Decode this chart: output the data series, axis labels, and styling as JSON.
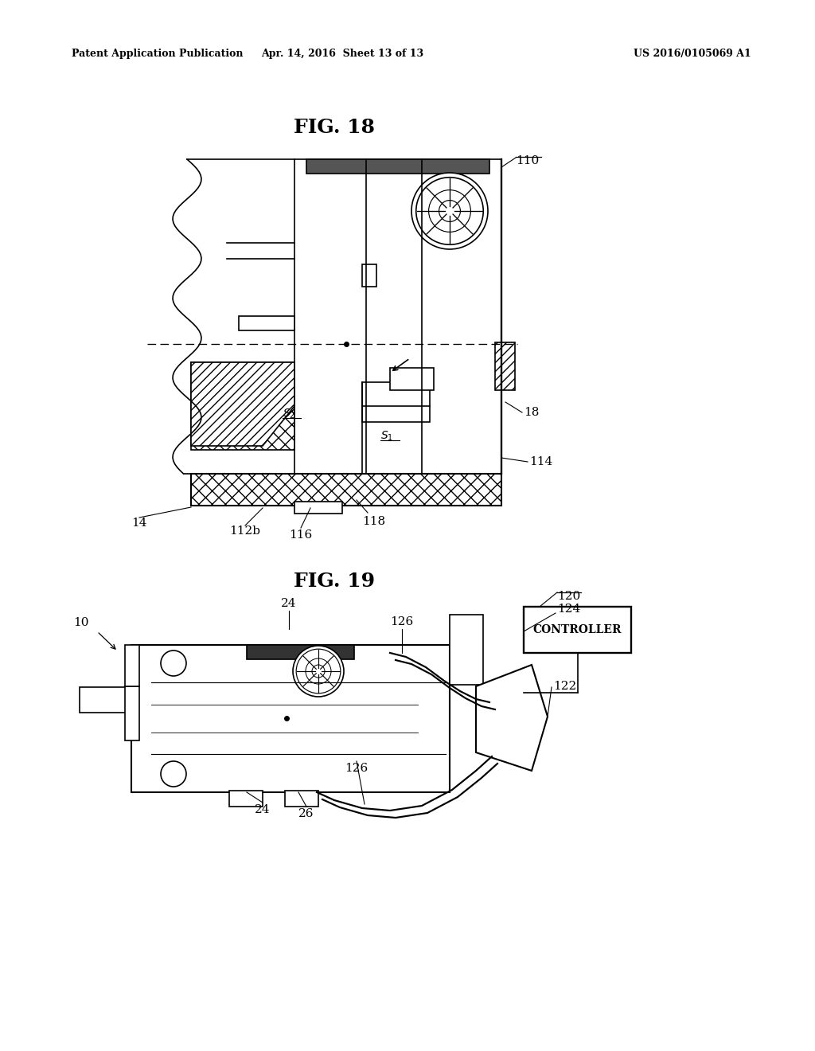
{
  "header_left": "Patent Application Publication",
  "header_mid": "Apr. 14, 2016  Sheet 13 of 13",
  "header_right": "US 2016/0105069 A1",
  "fig18_title": "FIG. 18",
  "fig19_title": "FIG. 19",
  "background": "#ffffff",
  "line_color": "#000000"
}
